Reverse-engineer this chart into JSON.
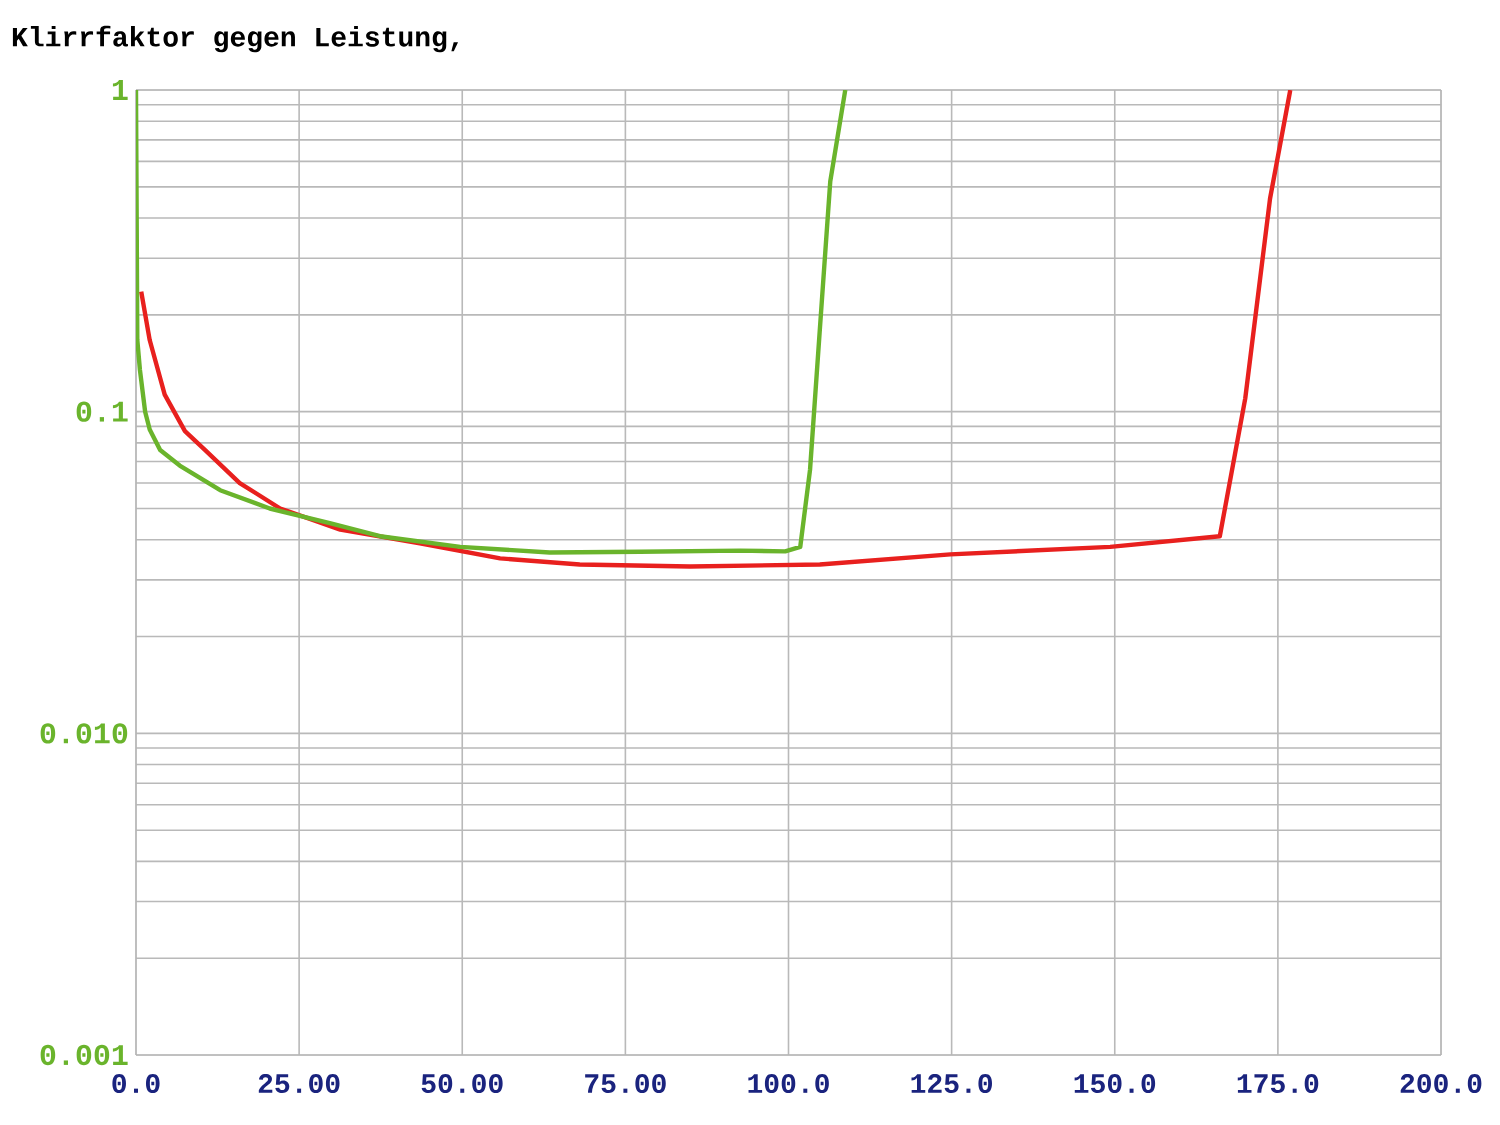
{
  "chart_data": {
    "type": "line",
    "title": "Klirrfaktor gegen Leistung,",
    "log": "y",
    "grid": true,
    "marker": "none",
    "line_style": "solid",
    "xlim": [
      0,
      200
    ],
    "ylim": [
      0.001,
      1
    ],
    "xticks": [
      {
        "value": 0,
        "label": "0.0"
      },
      {
        "value": 25,
        "label": "25.00"
      },
      {
        "value": 50,
        "label": "50.00"
      },
      {
        "value": 75,
        "label": "75.00"
      },
      {
        "value": 100,
        "label": "100.0"
      },
      {
        "value": 125,
        "label": "125.0"
      },
      {
        "value": 150,
        "label": "150.0"
      },
      {
        "value": 175,
        "label": "175.0"
      },
      {
        "value": 200,
        "label": "200.0"
      }
    ],
    "yticks": [
      1,
      0.1,
      {
        "value": 0.01,
        "label": "0.010"
      },
      {
        "value": 0.001,
        "label": "0.001"
      }
    ],
    "series": [
      {
        "color": "#e8201e",
        "x": [
          0.8,
          2.1,
          4.4,
          7.5,
          10.6,
          15.9,
          22.1,
          31.3,
          43.5,
          55.8,
          68,
          84.9,
          104.8,
          124.8,
          149.3,
          166.1,
          170,
          173.8,
          176.9
        ],
        "values": [
          0.236,
          0.167,
          0.113,
          0.087,
          0.076,
          0.06,
          0.05,
          0.043,
          0.039,
          0.035,
          0.0335,
          0.033,
          0.0335,
          0.036,
          0.038,
          0.041,
          0.11,
          0.46,
          1.0
        ]
      },
      {
        "color": "#6ab42c",
        "x": [
          0,
          0.2,
          0.6,
          1.4,
          2.1,
          3.7,
          6.7,
          12.9,
          20.5,
          29.7,
          37.4,
          49.7,
          63.4,
          77.2,
          92.6,
          99.5,
          101.8,
          103.3,
          104.8,
          106.4,
          108.7
        ],
        "values": [
          1.0,
          0.167,
          0.135,
          0.1,
          0.088,
          0.076,
          0.068,
          0.057,
          0.05,
          0.045,
          0.041,
          0.038,
          0.0365,
          0.0367,
          0.037,
          0.0368,
          0.038,
          0.066,
          0.18,
          0.52,
          1.0
        ]
      }
    ]
  }
}
